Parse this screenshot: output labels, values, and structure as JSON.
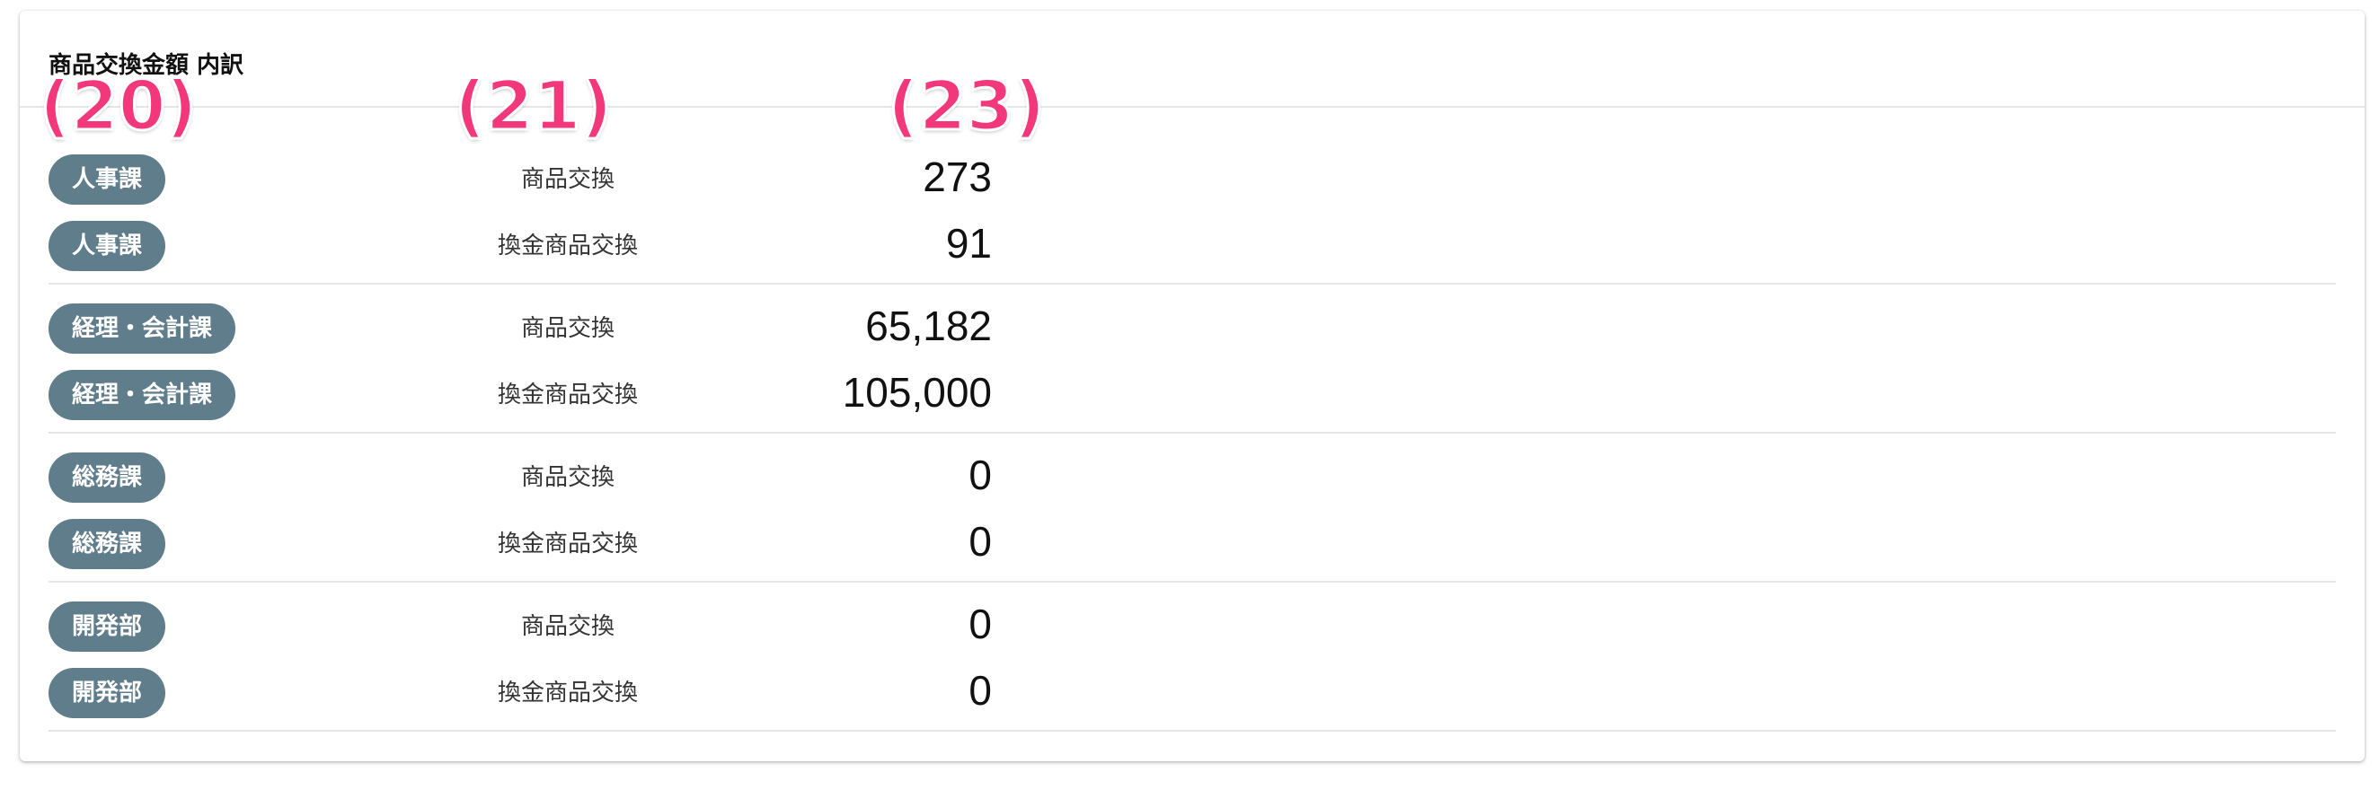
{
  "card": {
    "title": "商品交換金額 内訳"
  },
  "callouts": {
    "department": "(20)",
    "type": "(21)",
    "amount": "(23)"
  },
  "colors": {
    "chip_bg": "#607d8b",
    "callout": "#f2387a"
  },
  "rows": [
    {
      "department": "人事課",
      "type": "商品交換",
      "amount": "273"
    },
    {
      "department": "人事課",
      "type": "換金商品交換",
      "amount": "91"
    },
    {
      "department": "経理・会計課",
      "type": "商品交換",
      "amount": "65,182"
    },
    {
      "department": "経理・会計課",
      "type": "換金商品交換",
      "amount": "105,000"
    },
    {
      "department": "総務課",
      "type": "商品交換",
      "amount": "0"
    },
    {
      "department": "総務課",
      "type": "換金商品交換",
      "amount": "0"
    },
    {
      "department": "開発部",
      "type": "商品交換",
      "amount": "0"
    },
    {
      "department": "開発部",
      "type": "換金商品交換",
      "amount": "0"
    }
  ]
}
